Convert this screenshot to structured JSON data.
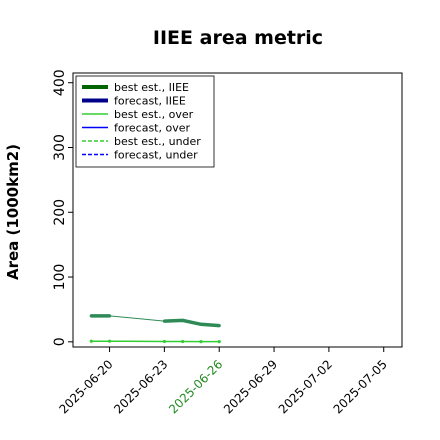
{
  "chart_data": {
    "type": "line",
    "title": "IIEE area metric",
    "xlabel": "",
    "ylabel": "Area (1000km2)",
    "x_ticks": [
      "2025-06-20",
      "2025-06-23",
      "2025-06-26",
      "2025-06-29",
      "2025-07-02",
      "2025-07-05"
    ],
    "highlighted_tick": "2025-06-26",
    "highlight_color": "#228b22",
    "xlim": [
      "2025-06-18",
      "2025-07-06"
    ],
    "ylim": [
      -8,
      415
    ],
    "y_ticks": [
      0,
      100,
      200,
      300,
      400
    ],
    "grid": false,
    "legend_placement": "top-left",
    "legend": [
      {
        "label": "best est., IIEE",
        "color": "#006400",
        "style": "thick-solid"
      },
      {
        "label": "forecast, IIEE",
        "color": "#00008b",
        "style": "thick-solid"
      },
      {
        "label": "best est., over",
        "color": "#32cd32",
        "style": "solid"
      },
      {
        "label": "forecast, over",
        "color": "#0000ff",
        "style": "solid"
      },
      {
        "label": "best est., under",
        "color": "#32cd32",
        "style": "dashed"
      },
      {
        "label": "forecast, under",
        "color": "#0000ff",
        "style": "dashed"
      }
    ],
    "series": [
      {
        "name": "best est., IIEE",
        "color": "#2e8b57",
        "x": [
          "2025-06-19",
          "2025-06-20",
          "2025-06-23",
          "2025-06-24",
          "2025-06-25",
          "2025-06-26"
        ],
        "y": [
          40,
          40,
          32,
          33,
          27,
          25
        ]
      },
      {
        "name": "best est., over",
        "color": "#32cd32",
        "x": [
          "2025-06-19",
          "2025-06-20",
          "2025-06-23",
          "2025-06-24",
          "2025-06-25",
          "2025-06-26"
        ],
        "y": [
          1,
          1,
          0.5,
          0.5,
          0.3,
          0.3
        ]
      }
    ]
  }
}
